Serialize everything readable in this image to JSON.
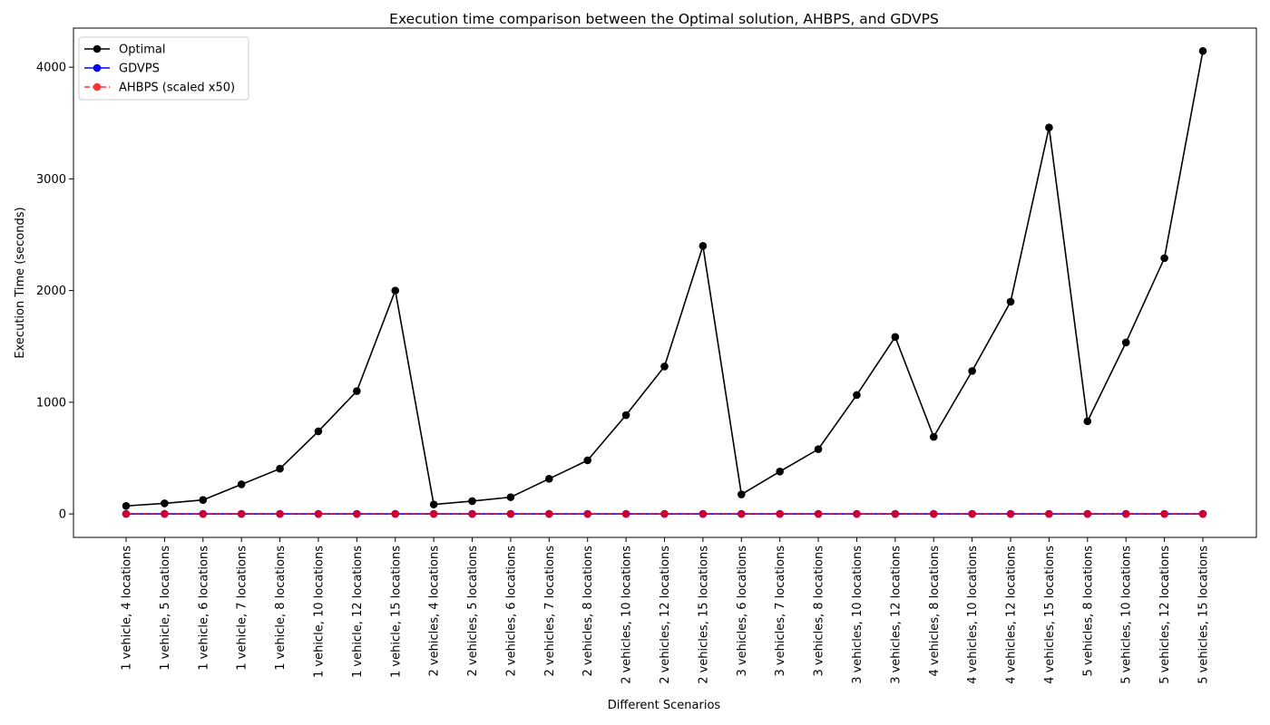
{
  "chart_data": {
    "type": "line",
    "title": "Execution time comparison between the Optimal solution, AHBPS, and GDVPS",
    "xlabel": "Different Scenarios",
    "ylabel": "Execution Time (seconds)",
    "ylim": [
      -210,
      4350
    ],
    "yticks": [
      0,
      1000,
      2000,
      3000,
      4000
    ],
    "grid": false,
    "legend_position": "top-left",
    "categories": [
      "1 vehicle, 4 locations",
      "1 vehicle, 5 locations",
      "1 vehicle, 6 locations",
      "1 vehicle, 7 locations",
      "1 vehicle, 8 locations",
      "1 vehicle, 10 locations",
      "1 vehicle, 12 locations",
      "1 vehicle, 15 locations",
      "2 vehicles, 4 locations",
      "2 vehicles, 5 locations",
      "2 vehicles, 6 locations",
      "2 vehicles, 7 locations",
      "2 vehicles, 8 locations",
      "2 vehicles, 10 locations",
      "2 vehicles, 12 locations",
      "2 vehicles, 15 locations",
      "3 vehicles, 6 locations",
      "3 vehicles, 7 locations",
      "3 vehicles, 8 locations",
      "3 vehicles, 10 locations",
      "3 vehicles, 12 locations",
      "4 vehicles, 8 locations",
      "4 vehicles, 10 locations",
      "4 vehicles, 12 locations",
      "4 vehicles, 15 locations",
      "5 vehicles, 8 locations",
      "5 vehicles, 10 locations",
      "5 vehicles, 12 locations",
      "5 vehicles, 15 locations"
    ],
    "series": [
      {
        "name": "Optimal",
        "color": "#000000",
        "linestyle": "solid",
        "marker": "circle",
        "values": [
          72,
          95,
          125,
          265,
          405,
          740,
          1100,
          2000,
          85,
          115,
          150,
          315,
          480,
          885,
          1320,
          2400,
          175,
          380,
          580,
          1065,
          1585,
          690,
          1280,
          1900,
          3460,
          830,
          1535,
          2290,
          4145
        ]
      },
      {
        "name": "GDVPS",
        "color": "#0000ff",
        "linestyle": "solid",
        "marker": "circle",
        "values": [
          0.5,
          0.5,
          0.5,
          0.5,
          0.5,
          0.5,
          0.5,
          0.5,
          0.5,
          0.5,
          0.5,
          0.5,
          0.5,
          0.5,
          0.5,
          0.5,
          0.5,
          0.5,
          0.5,
          0.5,
          0.5,
          0.5,
          0.5,
          0.5,
          0.5,
          0.5,
          0.5,
          0.5,
          0.5
        ]
      },
      {
        "name": "AHBPS (scaled x50)",
        "color": "#ff0000",
        "linestyle": "dashed",
        "marker": "circle",
        "alpha": 0.8,
        "values": [
          1,
          1,
          1,
          1,
          1,
          1,
          1,
          1,
          1,
          1,
          1,
          1,
          1,
          1,
          1,
          1,
          1,
          1,
          1,
          1,
          1,
          1,
          1,
          1,
          1,
          1,
          1,
          1,
          1
        ]
      }
    ]
  }
}
